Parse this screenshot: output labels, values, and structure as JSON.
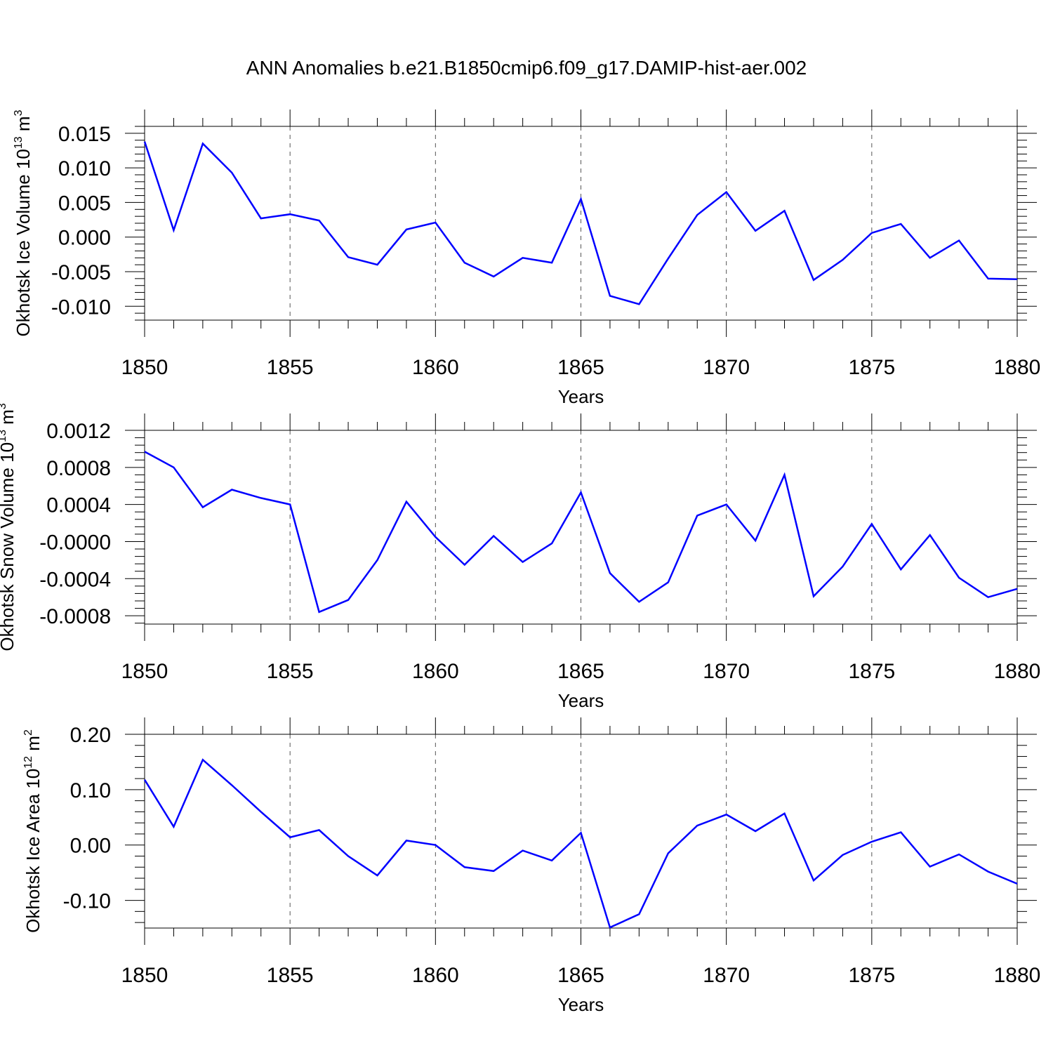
{
  "title": "ANN Anomalies b.e21.B1850cmip6.f09_g17.DAMIP-hist-aer.002",
  "line_color": "#0000ff",
  "chart_data": [
    {
      "type": "line",
      "title": "",
      "xlabel": "Years",
      "ylabel": "Okhotsk Ice Volume 10",
      "ylabel_exp": "13",
      "ylabel_unit": " m",
      "ylabel_unit_exp": "3",
      "xlim": [
        1850,
        1880
      ],
      "ylim": [
        -0.012,
        0.016
      ],
      "grid": "vertical dashed at major x ticks",
      "xticks": [
        1850,
        1855,
        1860,
        1865,
        1870,
        1875,
        1880
      ],
      "xtick_labels": [
        "1850",
        "1855",
        "1860",
        "1865",
        "1870",
        "1875",
        "1880"
      ],
      "yticks": [
        0.015,
        0.01,
        0.005,
        0.0,
        -0.005,
        -0.01
      ],
      "ytick_labels": [
        "0.015",
        "0.010",
        "0.005",
        "0.000",
        "-0.005",
        "-0.010"
      ],
      "series": [
        {
          "x": [
            1850,
            1851,
            1852,
            1853,
            1854,
            1855,
            1856,
            1857,
            1858,
            1859,
            1860,
            1861,
            1862,
            1863,
            1864,
            1865,
            1866,
            1867,
            1868,
            1869,
            1870,
            1871,
            1872,
            1873,
            1874,
            1875,
            1876,
            1877,
            1878,
            1879,
            1880
          ],
          "values": [
            0.0138,
            0.001,
            0.0135,
            0.0093,
            0.0027,
            0.0033,
            0.0024,
            -0.0029,
            -0.004,
            0.0011,
            0.0021,
            -0.0037,
            -0.0057,
            -0.003,
            -0.0037,
            0.0055,
            -0.0085,
            -0.0097,
            -0.0031,
            0.0032,
            0.0065,
            0.0009,
            0.0038,
            -0.0062,
            -0.0033,
            0.0006,
            0.0019,
            -0.003,
            -0.0005,
            -0.006,
            -0.0061
          ]
        }
      ]
    },
    {
      "type": "line",
      "title": "",
      "xlabel": "Years",
      "ylabel": "Okhotsk Snow Volume 10",
      "ylabel_exp": "13",
      "ylabel_unit": " m",
      "ylabel_unit_exp": "3",
      "xlim": [
        1850,
        1880
      ],
      "ylim": [
        -0.00089,
        0.0012
      ],
      "grid": "vertical dashed at major x ticks",
      "xticks": [
        1850,
        1855,
        1860,
        1865,
        1870,
        1875,
        1880
      ],
      "xtick_labels": [
        "1850",
        "1855",
        "1860",
        "1865",
        "1870",
        "1875",
        "1880"
      ],
      "yticks": [
        0.0012,
        0.0008,
        0.0004,
        0.0,
        -0.0004,
        -0.0008
      ],
      "ytick_labels": [
        "0.0012",
        "0.0008",
        "0.0004",
        "-0.0000",
        "-0.0004",
        "-0.0008"
      ],
      "series": [
        {
          "x": [
            1850,
            1851,
            1852,
            1853,
            1854,
            1855,
            1856,
            1857,
            1858,
            1859,
            1860,
            1861,
            1862,
            1863,
            1864,
            1865,
            1866,
            1867,
            1868,
            1869,
            1870,
            1871,
            1872,
            1873,
            1874,
            1875,
            1876,
            1877,
            1878,
            1879,
            1880
          ],
          "values": [
            0.00097,
            0.0008,
            0.00037,
            0.00056,
            0.00047,
            0.0004,
            -0.00076,
            -0.00063,
            -0.0002,
            0.00043,
            5e-05,
            -0.00025,
            6e-05,
            -0.00022,
            -2e-05,
            0.00053,
            -0.00034,
            -0.00065,
            -0.00044,
            0.00028,
            0.0004,
            1e-05,
            0.00072,
            -0.00059,
            -0.00027,
            0.00019,
            -0.0003,
            7e-05,
            -0.00039,
            -0.0006,
            -0.00051
          ]
        }
      ]
    },
    {
      "type": "line",
      "title": "",
      "xlabel": "Years",
      "ylabel": "Okhotsk Ice Area 10",
      "ylabel_exp": "12",
      "ylabel_unit": " m",
      "ylabel_unit_exp": "2",
      "xlim": [
        1850,
        1880
      ],
      "ylim": [
        -0.15,
        0.2
      ],
      "grid": "vertical dashed at major x ticks",
      "xticks": [
        1850,
        1855,
        1860,
        1865,
        1870,
        1875,
        1880
      ],
      "xtick_labels": [
        "1850",
        "1855",
        "1860",
        "1865",
        "1870",
        "1875",
        "1880"
      ],
      "yticks": [
        0.2,
        0.1,
        0.0,
        -0.1
      ],
      "ytick_labels": [
        "0.20",
        "0.10",
        "0.00",
        "-0.10"
      ],
      "series": [
        {
          "x": [
            1850,
            1851,
            1852,
            1853,
            1854,
            1855,
            1856,
            1857,
            1858,
            1859,
            1860,
            1861,
            1862,
            1863,
            1864,
            1865,
            1866,
            1867,
            1868,
            1869,
            1870,
            1871,
            1872,
            1873,
            1874,
            1875,
            1876,
            1877,
            1878,
            1879,
            1880
          ],
          "values": [
            0.118,
            0.033,
            0.154,
            0.108,
            0.06,
            0.014,
            0.027,
            -0.02,
            -0.055,
            0.008,
            0.0,
            -0.04,
            -0.047,
            -0.01,
            -0.028,
            0.022,
            -0.149,
            -0.125,
            -0.015,
            0.035,
            0.055,
            0.025,
            0.057,
            -0.064,
            -0.018,
            0.006,
            0.023,
            -0.039,
            -0.017,
            -0.048,
            -0.07
          ]
        }
      ]
    }
  ]
}
